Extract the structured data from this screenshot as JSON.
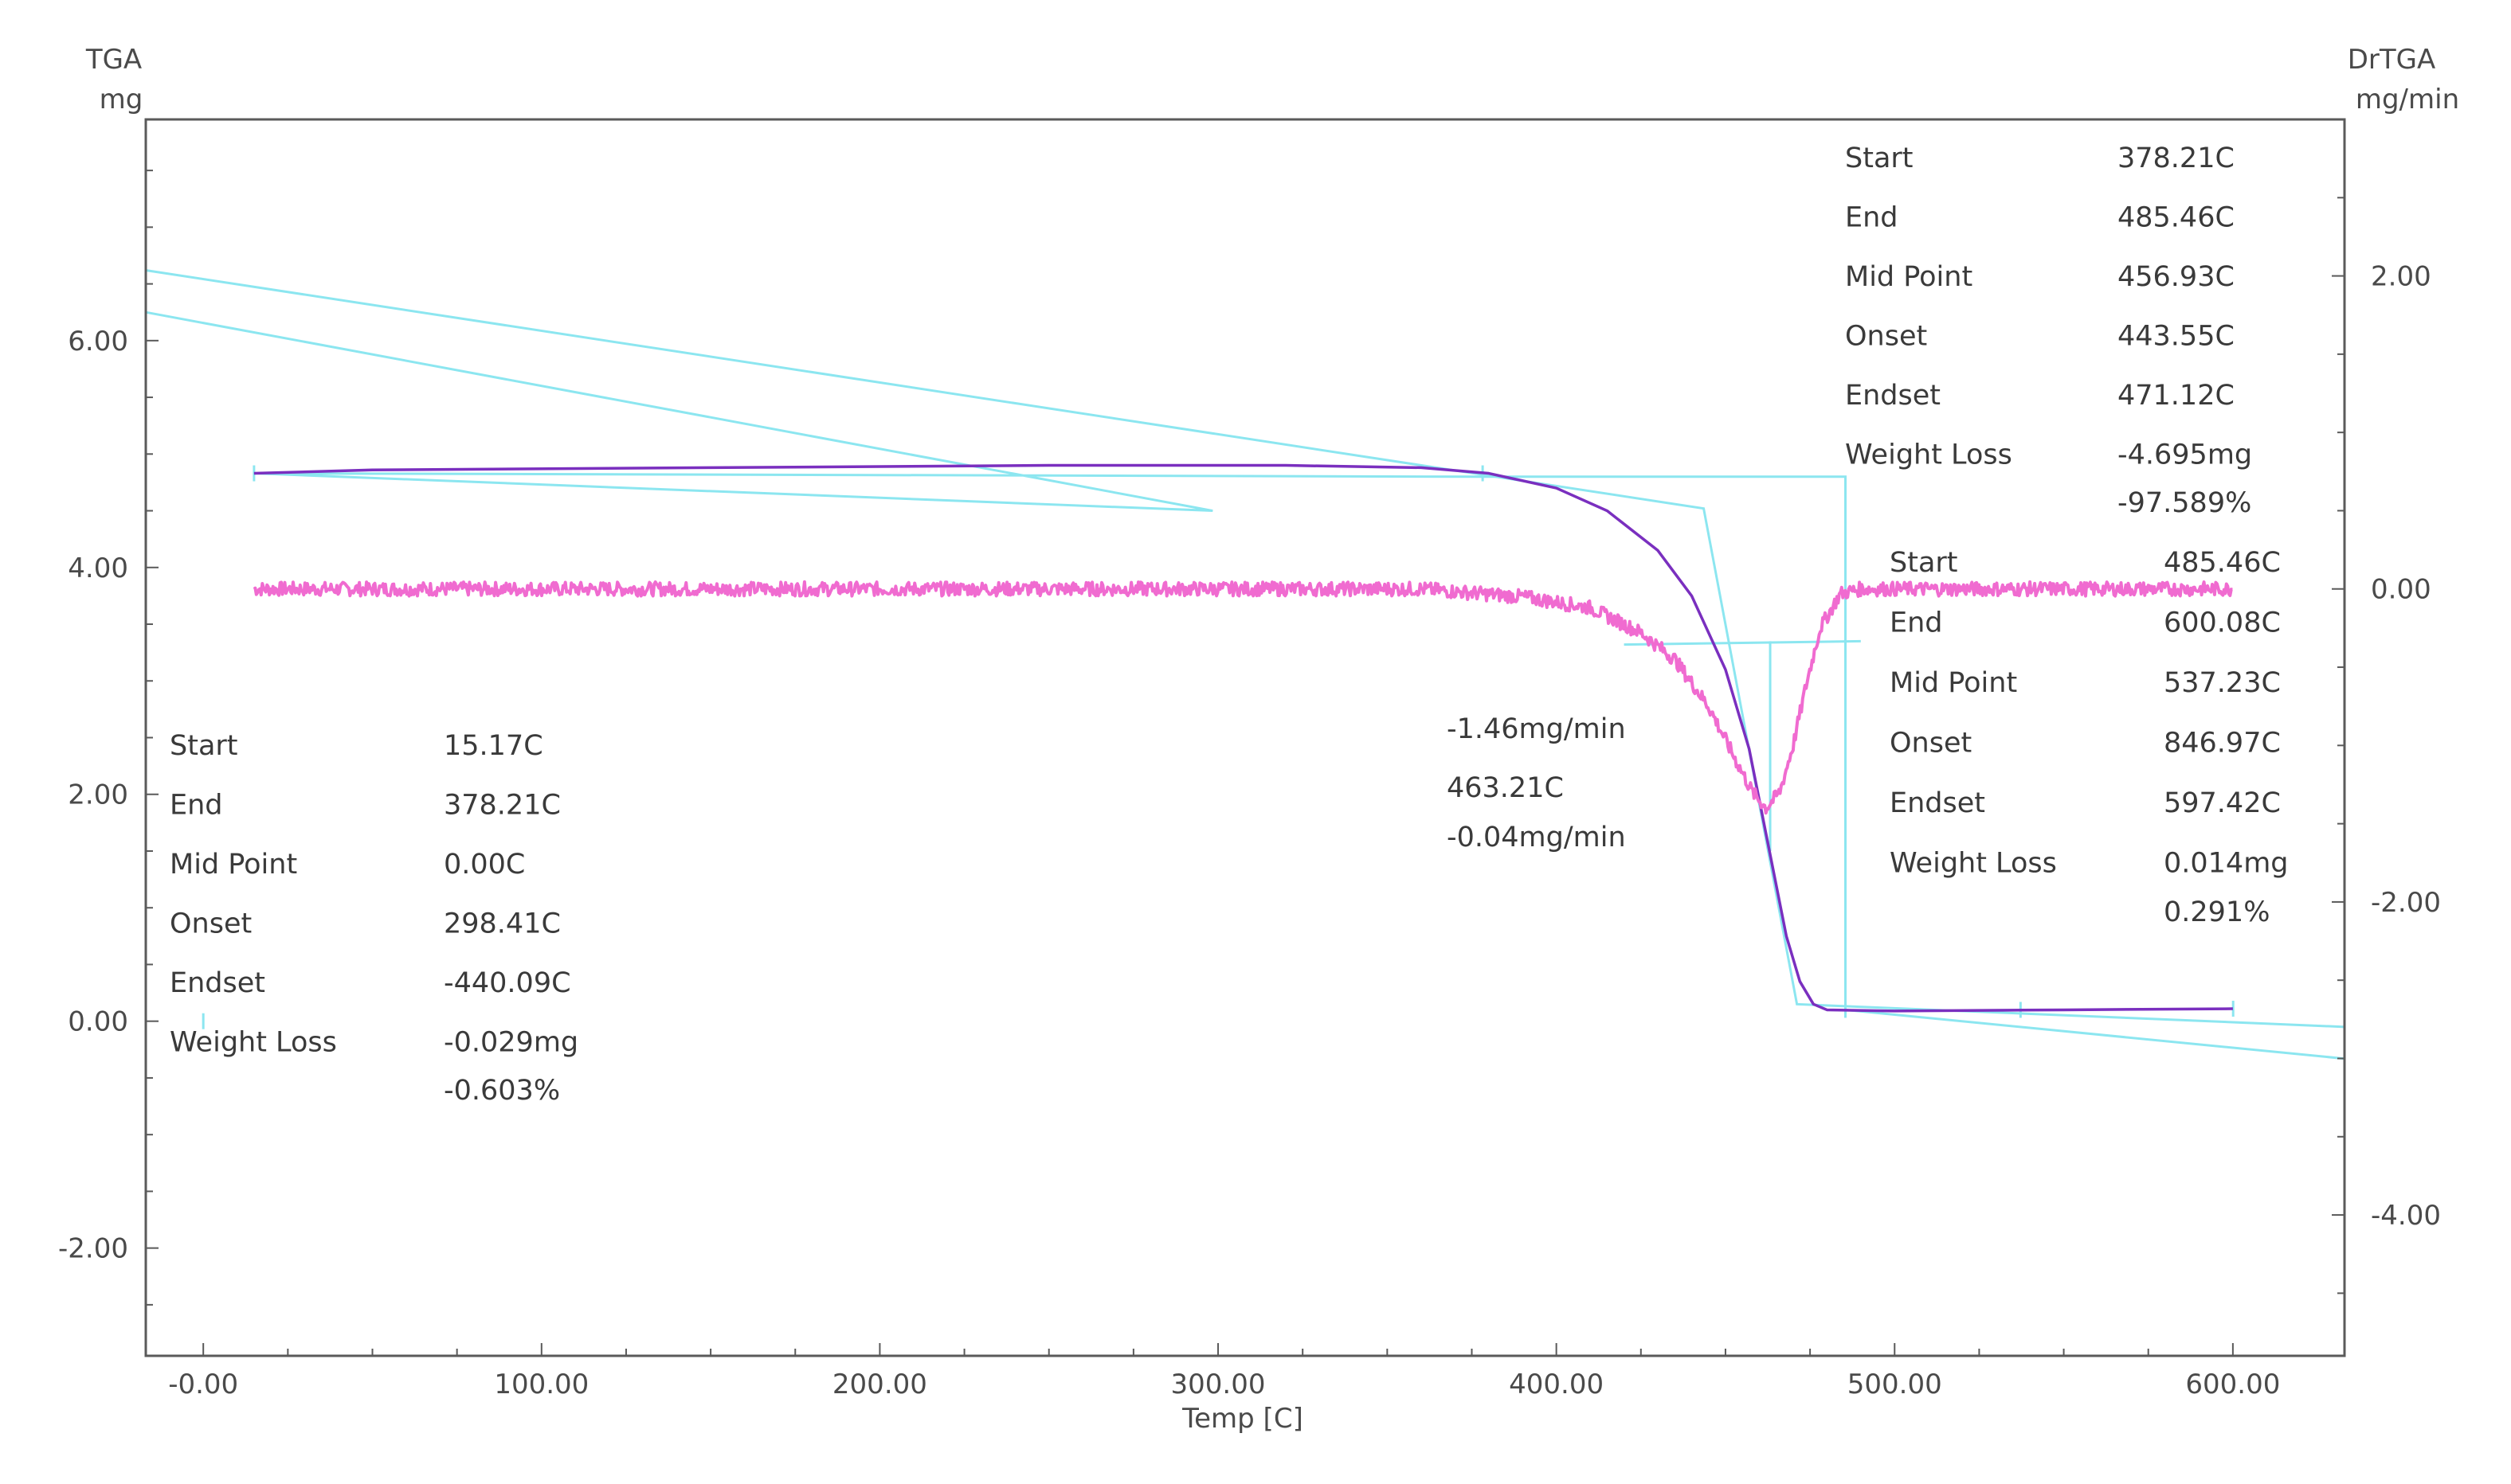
{
  "chart_data": {
    "type": "line",
    "x_axis": {
      "label": "Temp  [C]",
      "range": [
        -17,
        633
      ],
      "ticks": [
        "-0.00",
        "100.00",
        "200.00",
        "300.00",
        "400.00",
        "500.00",
        "600.00"
      ],
      "tick_values": [
        0,
        100,
        200,
        300,
        400,
        500,
        600
      ]
    },
    "y_left_axis": {
      "label_top": "TGA",
      "label_unit": "mg",
      "range": [
        -2.95,
        7.95
      ],
      "ticks": [
        "6.00",
        "4.00",
        "2.00",
        "0.00",
        "-2.00"
      ],
      "tick_values": [
        6,
        4,
        2,
        0,
        -2
      ]
    },
    "y_right_axis": {
      "label_top": "DrTGA",
      "label_unit": "mg/min",
      "range": [
        -4.9,
        3.0
      ],
      "ticks": [
        "2.00",
        "0.00",
        "-2.00",
        "-4.00"
      ],
      "tick_values": [
        2,
        0,
        -2,
        -4
      ]
    },
    "series": [
      {
        "color": "#7a2fbf",
        "axis": "left",
        "points": [
          [
            15,
            4.83
          ],
          [
            50,
            4.86
          ],
          [
            150,
            4.88
          ],
          [
            250,
            4.9
          ],
          [
            320,
            4.9
          ],
          [
            360,
            4.88
          ],
          [
            380,
            4.83
          ],
          [
            400,
            4.7
          ],
          [
            415,
            4.5
          ],
          [
            430,
            4.15
          ],
          [
            440,
            3.75
          ],
          [
            450,
            3.1
          ],
          [
            457,
            2.4
          ],
          [
            463,
            1.5
          ],
          [
            468,
            0.75
          ],
          [
            472,
            0.35
          ],
          [
            476,
            0.15
          ],
          [
            480,
            0.1
          ],
          [
            500,
            0.09
          ],
          [
            550,
            0.1
          ],
          [
            600,
            0.11
          ]
        ]
      },
      {
        "color": "#f06bd0",
        "axis": "right",
        "noisy": true,
        "points": [
          [
            15,
            0.0
          ],
          [
            100,
            0.0
          ],
          [
            200,
            0.0
          ],
          [
            300,
            0.0
          ],
          [
            360,
            0.0
          ],
          [
            390,
            -0.05
          ],
          [
            410,
            -0.12
          ],
          [
            425,
            -0.28
          ],
          [
            435,
            -0.45
          ],
          [
            445,
            -0.75
          ],
          [
            452,
            -1.05
          ],
          [
            458,
            -1.3
          ],
          [
            462,
            -1.4
          ],
          [
            466,
            -1.3
          ],
          [
            470,
            -1.0
          ],
          [
            474,
            -0.6
          ],
          [
            478,
            -0.25
          ],
          [
            484,
            -0.03
          ],
          [
            490,
            0.0
          ],
          [
            550,
            0.0
          ],
          [
            600,
            0.0
          ]
        ]
      }
    ],
    "annotations": [
      {
        "items": [
          {
            "label": "Start",
            "value": "378.21C"
          },
          {
            "label": "End",
            "value": "485.46C"
          },
          {
            "label": "Mid Point",
            "value": "456.93C"
          },
          {
            "label": "Onset",
            "value": "443.55C"
          },
          {
            "label": "Endset",
            "value": "471.12C"
          },
          {
            "label": "Weight Loss",
            "value": "-4.695mg"
          },
          {
            "label": "",
            "value": "-97.589%"
          }
        ]
      },
      {
        "items": [
          {
            "label": "Start",
            "value": "485.46C"
          },
          {
            "label": "End",
            "value": "600.08C"
          },
          {
            "label": "Mid Point",
            "value": "537.23C"
          },
          {
            "label": "Onset",
            "value": "846.97C"
          },
          {
            "label": "Endset",
            "value": "597.42C"
          },
          {
            "label": "Weight Loss",
            "value": "0.014mg"
          },
          {
            "label": "",
            "value": "0.291%"
          }
        ]
      },
      {
        "items": [
          {
            "label": "Start",
            "value": "15.17C"
          },
          {
            "label": "End",
            "value": "378.21C"
          },
          {
            "label": "Mid Point",
            "value": "0.00C"
          },
          {
            "label": "Onset",
            "value": "298.41C"
          },
          {
            "label": "Endset",
            "value": "-440.09C"
          },
          {
            "label": "Weight Loss",
            "value": "-0.029mg"
          },
          {
            "label": "",
            "value": "-0.603%"
          }
        ]
      },
      {
        "items": [
          {
            "value": "-1.46mg/min"
          },
          {
            "value": "463.21C"
          },
          {
            "value": "-0.04mg/min"
          }
        ]
      }
    ],
    "construction_lines": {
      "color": "#8ce6f0",
      "axis": "left",
      "polylines": [
        [
          [
            -17,
            6.62
          ],
          [
            443.55,
            4.52
          ],
          [
            471.12,
            0.15
          ],
          [
            633,
            -0.05
          ]
        ],
        [
          [
            -17,
            6.25
          ],
          [
            298.41,
            4.5
          ],
          [
            15,
            4.83
          ],
          [
            378.21,
            4.8
          ],
          [
            485.46,
            4.8
          ],
          [
            485.46,
            0.1
          ],
          [
            633,
            -0.33
          ]
        ],
        [
          [
            463.21,
            3.35
          ],
          [
            463.21,
            1.5
          ]
        ],
        [
          [
            420,
            3.32
          ],
          [
            490,
            3.35
          ]
        ]
      ],
      "markers": [
        [
          15,
          4.83
        ],
        [
          378.21,
          4.83
        ],
        [
          485.46,
          0.1
        ],
        [
          537.23,
          0.1
        ],
        [
          600.08,
          0.11
        ],
        [
          0,
          0.0
        ]
      ]
    },
    "grid": false
  }
}
